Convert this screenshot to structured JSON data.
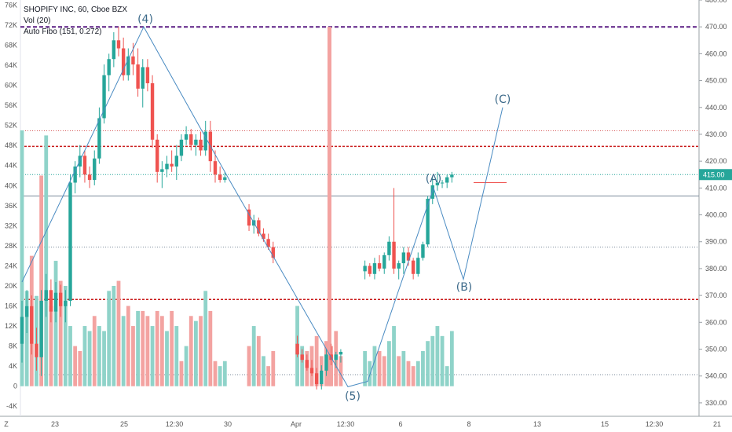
{
  "legend": {
    "symbol": "SHOPIFY INC, 60, Cboe BZX",
    "volume": "Vol (20)",
    "fib": "Auto Fibo (151, 0.272)"
  },
  "colors": {
    "up": "#26a69a",
    "down": "#ef5350",
    "vol_up": "#8fd3c9",
    "vol_down": "#f3a3a1",
    "fib_dashed": "#5b1e84",
    "red_dashed": "#c91b1b",
    "wave": "#4a8bc2",
    "price_badge": "#26a69a"
  },
  "chart_data": {
    "type": "candlestick",
    "price_axis_right": {
      "range": [
        325,
        480
      ],
      "ticks": [
        "480.00",
        "470.00",
        "460.00",
        "450.00",
        "440.00",
        "430.00",
        "420.00",
        "410.00",
        "400.00",
        "390.00",
        "380.00",
        "370.00",
        "360.00",
        "350.00",
        "340.00",
        "330.00"
      ]
    },
    "volume_axis_left": {
      "range": [
        -6000,
        77000
      ],
      "ticks": [
        "76K",
        "72K",
        "68K",
        "64K",
        "60K",
        "56K",
        "52K",
        "48K",
        "44K",
        "40K",
        "36K",
        "32K",
        "28K",
        "24K",
        "20K",
        "16K",
        "12K",
        "8K",
        "4K",
        "0",
        "-4K"
      ]
    },
    "x_ticks": [
      "23",
      "25",
      "12:30",
      "30",
      "Apr",
      "12:30",
      "6",
      "8",
      "13",
      "15",
      "12:30",
      "21"
    ],
    "last_price": "415.00",
    "wave_labels": [
      "(4)",
      "(5)",
      "(A)",
      "(B)",
      "(C)"
    ],
    "levels": {
      "fib_top": 470.0,
      "red_upper": 425.5,
      "red_lower": 368.5,
      "red_dotted_top": 431.3,
      "teal_dotted_mid": 415.0,
      "gray_line": 407.0,
      "gray_dotted": 388.0,
      "gray_dotted_low": 340.5
    },
    "candles": [
      {
        "o": 352,
        "h": 368,
        "l": 345,
        "c": 362
      },
      {
        "o": 362,
        "h": 372,
        "l": 356,
        "c": 366
      },
      {
        "o": 366,
        "h": 370,
        "l": 348,
        "c": 352
      },
      {
        "o": 352,
        "h": 358,
        "l": 342,
        "c": 347
      },
      {
        "o": 347,
        "h": 372,
        "l": 340,
        "c": 368
      },
      {
        "o": 368,
        "h": 378,
        "l": 362,
        "c": 372
      },
      {
        "o": 372,
        "h": 376,
        "l": 360,
        "c": 364
      },
      {
        "o": 364,
        "h": 375,
        "l": 360,
        "c": 371
      },
      {
        "o": 371,
        "h": 374,
        "l": 362,
        "c": 366
      },
      {
        "o": 366,
        "h": 372,
        "l": 360,
        "c": 368
      },
      {
        "o": 368,
        "h": 415,
        "l": 366,
        "c": 412
      },
      {
        "o": 412,
        "h": 420,
        "l": 408,
        "c": 418
      },
      {
        "o": 418,
        "h": 426,
        "l": 414,
        "c": 422
      },
      {
        "o": 422,
        "h": 424,
        "l": 412,
        "c": 415
      },
      {
        "o": 415,
        "h": 418,
        "l": 410,
        "c": 413
      },
      {
        "o": 413,
        "h": 424,
        "l": 411,
        "c": 421
      },
      {
        "o": 421,
        "h": 440,
        "l": 419,
        "c": 436
      },
      {
        "o": 436,
        "h": 456,
        "l": 434,
        "c": 452
      },
      {
        "o": 452,
        "h": 460,
        "l": 446,
        "c": 458
      },
      {
        "o": 458,
        "h": 468,
        "l": 455,
        "c": 465
      },
      {
        "o": 465,
        "h": 470,
        "l": 459,
        "c": 462
      },
      {
        "o": 462,
        "h": 466,
        "l": 450,
        "c": 452
      },
      {
        "o": 452,
        "h": 462,
        "l": 450,
        "c": 459
      },
      {
        "o": 459,
        "h": 464,
        "l": 452,
        "c": 456
      },
      {
        "o": 456,
        "h": 462,
        "l": 444,
        "c": 447
      },
      {
        "o": 447,
        "h": 458,
        "l": 440,
        "c": 455
      },
      {
        "o": 455,
        "h": 458,
        "l": 446,
        "c": 449
      },
      {
        "o": 449,
        "h": 452,
        "l": 425,
        "c": 428
      },
      {
        "o": 428,
        "h": 430,
        "l": 412,
        "c": 416
      },
      {
        "o": 416,
        "h": 420,
        "l": 410,
        "c": 417
      },
      {
        "o": 417,
        "h": 422,
        "l": 414,
        "c": 419
      },
      {
        "o": 419,
        "h": 424,
        "l": 416,
        "c": 418
      },
      {
        "o": 418,
        "h": 426,
        "l": 413,
        "c": 422
      },
      {
        "o": 422,
        "h": 430,
        "l": 420,
        "c": 428
      },
      {
        "o": 428,
        "h": 433,
        "l": 426,
        "c": 430
      },
      {
        "o": 430,
        "h": 432,
        "l": 424,
        "c": 426
      },
      {
        "o": 426,
        "h": 430,
        "l": 422,
        "c": 428
      },
      {
        "o": 428,
        "h": 431,
        "l": 422,
        "c": 424
      },
      {
        "o": 424,
        "h": 435,
        "l": 422,
        "c": 431
      },
      {
        "o": 431,
        "h": 435,
        "l": 416,
        "c": 420
      },
      {
        "o": 420,
        "h": 424,
        "l": 412,
        "c": 415
      },
      {
        "o": 415,
        "h": 418,
        "l": 412,
        "c": 413
      },
      {
        "o": 413,
        "h": 416,
        "l": 412,
        "c": 414
      },
      {
        "o": 402,
        "h": 404,
        "l": 394,
        "c": 396
      },
      {
        "o": 396,
        "h": 400,
        "l": 393,
        "c": 398
      },
      {
        "o": 398,
        "h": 399,
        "l": 392,
        "c": 393
      },
      {
        "o": 393,
        "h": 395,
        "l": 390,
        "c": 391
      },
      {
        "o": 391,
        "h": 393,
        "l": 387,
        "c": 388
      },
      {
        "o": 388,
        "h": 390,
        "l": 382,
        "c": 384
      },
      {
        "o": 352,
        "h": 355,
        "l": 347,
        "c": 348
      },
      {
        "o": 348,
        "h": 350,
        "l": 345,
        "c": 346
      },
      {
        "o": 346,
        "h": 348,
        "l": 342,
        "c": 343
      },
      {
        "o": 343,
        "h": 346,
        "l": 340,
        "c": 341
      },
      {
        "o": 341,
        "h": 343,
        "l": 335,
        "c": 337
      },
      {
        "o": 337,
        "h": 344,
        "l": 335,
        "c": 342
      },
      {
        "o": 342,
        "h": 350,
        "l": 340,
        "c": 348
      },
      {
        "o": 348,
        "h": 352,
        "l": 344,
        "c": 346
      },
      {
        "o": 346,
        "h": 349,
        "l": 343,
        "c": 348
      },
      {
        "o": 348,
        "h": 350,
        "l": 345,
        "c": 349
      },
      {
        "o": 379,
        "h": 383,
        "l": 376,
        "c": 381
      },
      {
        "o": 381,
        "h": 382,
        "l": 377,
        "c": 378
      },
      {
        "o": 378,
        "h": 384,
        "l": 376,
        "c": 382
      },
      {
        "o": 382,
        "h": 385,
        "l": 379,
        "c": 380
      },
      {
        "o": 380,
        "h": 386,
        "l": 378,
        "c": 385
      },
      {
        "o": 385,
        "h": 392,
        "l": 383,
        "c": 390
      },
      {
        "o": 390,
        "h": 410,
        "l": 378,
        "c": 380
      },
      {
        "o": 380,
        "h": 383,
        "l": 376,
        "c": 382
      },
      {
        "o": 382,
        "h": 388,
        "l": 378,
        "c": 386
      },
      {
        "o": 386,
        "h": 388,
        "l": 381,
        "c": 383
      },
      {
        "o": 383,
        "h": 384,
        "l": 376,
        "c": 378
      },
      {
        "o": 378,
        "h": 386,
        "l": 377,
        "c": 384
      },
      {
        "o": 384,
        "h": 390,
        "l": 383,
        "c": 389
      },
      {
        "o": 389,
        "h": 407,
        "l": 388,
        "c": 406
      },
      {
        "o": 406,
        "h": 414,
        "l": 404,
        "c": 411
      },
      {
        "o": 411,
        "h": 416,
        "l": 409,
        "c": 412
      },
      {
        "o": 412,
        "h": 413,
        "l": 410,
        "c": 412
      },
      {
        "o": 412,
        "h": 415,
        "l": 410,
        "c": 414
      },
      {
        "o": 414,
        "h": 416,
        "l": 412,
        "c": 415
      }
    ],
    "volumes": [
      {
        "v": 51000,
        "d": "up"
      },
      {
        "v": 19000,
        "d": "up"
      },
      {
        "v": 26000,
        "d": "down"
      },
      {
        "v": 18000,
        "d": "up"
      },
      {
        "v": 42000,
        "d": "down"
      },
      {
        "v": 50000,
        "d": "up"
      },
      {
        "v": 16000,
        "d": "down"
      },
      {
        "v": 25000,
        "d": "up"
      },
      {
        "v": 21000,
        "d": "down"
      },
      {
        "v": 20000,
        "d": "up"
      },
      {
        "v": 12000,
        "d": "up"
      },
      {
        "v": 8000,
        "d": "down"
      },
      {
        "v": 7000,
        "d": "down"
      },
      {
        "v": 12000,
        "d": "up"
      },
      {
        "v": 11000,
        "d": "up"
      },
      {
        "v": 14000,
        "d": "down"
      },
      {
        "v": 12000,
        "d": "up"
      },
      {
        "v": 11000,
        "d": "up"
      },
      {
        "v": 19000,
        "d": "up"
      },
      {
        "v": 20000,
        "d": "up"
      },
      {
        "v": 21000,
        "d": "down"
      },
      {
        "v": 14000,
        "d": "up"
      },
      {
        "v": 16000,
        "d": "down"
      },
      {
        "v": 12000,
        "d": "down"
      },
      {
        "v": 15000,
        "d": "up"
      },
      {
        "v": 15000,
        "d": "down"
      },
      {
        "v": 14000,
        "d": "down"
      },
      {
        "v": 12000,
        "d": "up"
      },
      {
        "v": 15000,
        "d": "down"
      },
      {
        "v": 14000,
        "d": "down"
      },
      {
        "v": 11000,
        "d": "up"
      },
      {
        "v": 15000,
        "d": "down"
      },
      {
        "v": 12000,
        "d": "up"
      },
      {
        "v": 5000,
        "d": "down"
      },
      {
        "v": 8000,
        "d": "up"
      },
      {
        "v": 14000,
        "d": "down"
      },
      {
        "v": 13000,
        "d": "up"
      },
      {
        "v": 14000,
        "d": "down"
      },
      {
        "v": 19000,
        "d": "up"
      },
      {
        "v": 15000,
        "d": "down"
      },
      {
        "v": 5000,
        "d": "down"
      },
      {
        "v": 4000,
        "d": "up"
      },
      {
        "v": 5000,
        "d": "up"
      },
      {
        "v": 8000,
        "d": "down"
      },
      {
        "v": 12000,
        "d": "up"
      },
      {
        "v": 10000,
        "d": "down"
      },
      {
        "v": 6000,
        "d": "up"
      },
      {
        "v": 4000,
        "d": "down"
      },
      {
        "v": 7000,
        "d": "down"
      },
      {
        "v": 16000,
        "d": "up"
      },
      {
        "v": 8000,
        "d": "up"
      },
      {
        "v": 7000,
        "d": "down"
      },
      {
        "v": 8000,
        "d": "down"
      },
      {
        "v": 10000,
        "d": "down"
      },
      {
        "v": 6000,
        "d": "down"
      },
      {
        "v": 9000,
        "d": "down"
      },
      {
        "v": 8000,
        "d": "down"
      },
      {
        "v": 11000,
        "d": "down"
      },
      {
        "v": 6000,
        "d": "down"
      },
      {
        "v": 7000,
        "d": "up"
      },
      {
        "v": 5000,
        "d": "up"
      },
      {
        "v": 8000,
        "d": "up"
      },
      {
        "v": 7000,
        "d": "down"
      },
      {
        "v": 6000,
        "d": "down"
      },
      {
        "v": 9000,
        "d": "up"
      },
      {
        "v": 12000,
        "d": "up"
      },
      {
        "v": 6000,
        "d": "down"
      },
      {
        "v": 7000,
        "d": "up"
      },
      {
        "v": 5000,
        "d": "down"
      },
      {
        "v": 4000,
        "d": "down"
      },
      {
        "v": 5000,
        "d": "up"
      },
      {
        "v": 7000,
        "d": "up"
      },
      {
        "v": 9000,
        "d": "up"
      },
      {
        "v": 10000,
        "d": "up"
      },
      {
        "v": 12000,
        "d": "up"
      },
      {
        "v": 10000,
        "d": "up"
      },
      {
        "v": 4000,
        "d": "up"
      },
      {
        "v": 11000,
        "d": "up"
      }
    ]
  }
}
